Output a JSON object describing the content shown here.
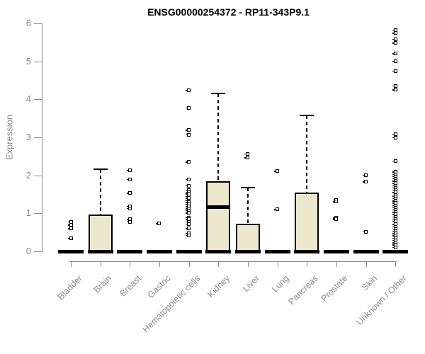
{
  "chart_data": {
    "type": "boxplot",
    "title": "ENSG00000254372 - RP11-343P9.1",
    "ylabel": "Expression",
    "xlabel": "",
    "ylim": [
      0,
      6
    ],
    "yticks": [
      0,
      1,
      2,
      3,
      4,
      5,
      6
    ],
    "grid": false,
    "legend": "none",
    "categories": [
      "Bladder",
      "Brain",
      "Breast",
      "Gastric",
      "Hematopoietic cells",
      "Kidney",
      "Liver",
      "Lung",
      "Pancreas",
      "Prostate",
      "Skin",
      "Unknown / Other"
    ],
    "boxes": [
      {
        "category": "Bladder",
        "q1": 0,
        "median": 0,
        "q3": 0,
        "whisker_low": 0,
        "whisker_high": 0,
        "outliers": [
          0.78,
          0.69,
          0.6,
          0.34
        ]
      },
      {
        "category": "Brain",
        "q1": 0,
        "median": 0,
        "q3": 0.97,
        "whisker_low": 0,
        "whisker_high": 2.17,
        "outliers": []
      },
      {
        "category": "Breast",
        "q1": 0,
        "median": 0,
        "q3": 0,
        "whisker_low": 0,
        "whisker_high": 0,
        "outliers": [
          2.14,
          1.9,
          1.53,
          1.19,
          1.13,
          0.84,
          0.78
        ]
      },
      {
        "category": "Gastric",
        "q1": 0,
        "median": 0,
        "q3": 0,
        "whisker_low": 0,
        "whisker_high": 0,
        "outliers": [
          0.73
        ]
      },
      {
        "category": "Hematopoietic cells",
        "q1": 0,
        "median": 0,
        "q3": 0,
        "whisker_low": 0,
        "whisker_high": 0,
        "outliers": [
          4.23,
          3.78,
          3.19,
          3.07,
          2.35,
          1.9,
          1.73,
          1.62,
          1.56,
          1.51,
          1.45,
          1.4,
          1.34,
          1.29,
          1.23,
          1.18,
          1.12,
          1.07,
          1.01,
          0.89,
          0.84,
          0.78,
          0.72,
          0.6,
          0.47,
          0.42
        ]
      },
      {
        "category": "Kidney",
        "q1": 0,
        "median": 1.16,
        "q3": 1.84,
        "whisker_low": 0,
        "whisker_high": 4.16,
        "outliers": []
      },
      {
        "category": "Liver",
        "q1": 0,
        "median": 0,
        "q3": 0.72,
        "whisker_low": 0,
        "whisker_high": 1.67,
        "outliers": [
          2.57,
          2.46
        ]
      },
      {
        "category": "Lung",
        "q1": 0,
        "median": 0,
        "q3": 0,
        "whisker_low": 0,
        "whisker_high": 0,
        "outliers": [
          2.11,
          1.1
        ]
      },
      {
        "category": "Pancreas",
        "q1": 0,
        "median": 0,
        "q3": 1.55,
        "whisker_low": 0,
        "whisker_high": 3.57,
        "outliers": []
      },
      {
        "category": "Prostate",
        "q1": 0,
        "median": 0,
        "q3": 0,
        "whisker_low": 0,
        "whisker_high": 0,
        "outliers": [
          1.36,
          1.31,
          0.88,
          0.84
        ]
      },
      {
        "category": "Skin",
        "q1": 0,
        "median": 0,
        "q3": 0,
        "whisker_low": 0,
        "whisker_high": 0,
        "outliers": [
          2.01,
          1.83,
          0.52
        ]
      },
      {
        "category": "Unknown / Other",
        "q1": 0,
        "median": 0,
        "q3": 0,
        "whisker_low": 0,
        "whisker_high": 0,
        "outliers": [
          5.83,
          5.74,
          5.58,
          5.48,
          5.2,
          5.01,
          4.75,
          4.36,
          4.25,
          3.09,
          3.0,
          2.38,
          2.09,
          2.03,
          1.97,
          1.91,
          1.85,
          1.79,
          1.73,
          1.67,
          1.61,
          1.55,
          1.49,
          1.45,
          1.39,
          1.33,
          1.27,
          1.21,
          1.15,
          1.09,
          1.03,
          0.97,
          0.91,
          0.85,
          0.79,
          0.71,
          0.65,
          0.59,
          0.53,
          0.47,
          0.41,
          0.35,
          0.29,
          0.23,
          0.17,
          0.11
        ]
      }
    ],
    "colors": {
      "box_fill": "#EDE8CD",
      "box_border": "#000000",
      "median": "#000000",
      "whisker": "#000000",
      "outlier": "#000000",
      "axis": "#8a8a8a",
      "tick_label": "#8a8a8a",
      "title": "#000000",
      "background": "#ffffff"
    }
  }
}
